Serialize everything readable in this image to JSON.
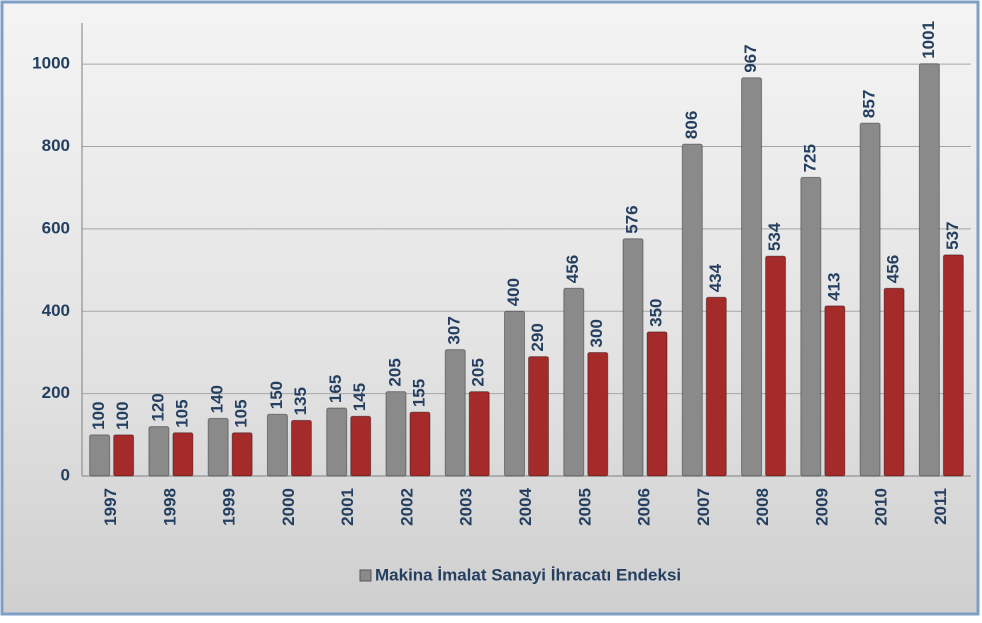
{
  "chart_data": {
    "type": "bar",
    "categories": [
      "1997",
      "1998",
      "1999",
      "2000",
      "2001",
      "2002",
      "2003",
      "2004",
      "2005",
      "2006",
      "2007",
      "2008",
      "2009",
      "2010",
      "2011"
    ],
    "series": [
      {
        "name": "Makina İmalat Sanayi İhracatı Endeksi",
        "color": "#8a8a8a",
        "values": [
          100,
          120,
          140,
          150,
          165,
          205,
          307,
          400,
          456,
          576,
          806,
          967,
          725,
          857,
          1001
        ]
      },
      {
        "color": "#a52a2a",
        "values": [
          100,
          105,
          105,
          135,
          145,
          155,
          205,
          290,
          300,
          350,
          434,
          534,
          413,
          456,
          537
        ]
      }
    ],
    "ylim": [
      0,
      1100
    ],
    "yticks": [
      0,
      200,
      400,
      600,
      800,
      1000
    ],
    "grid": true,
    "legend": "bottom"
  }
}
